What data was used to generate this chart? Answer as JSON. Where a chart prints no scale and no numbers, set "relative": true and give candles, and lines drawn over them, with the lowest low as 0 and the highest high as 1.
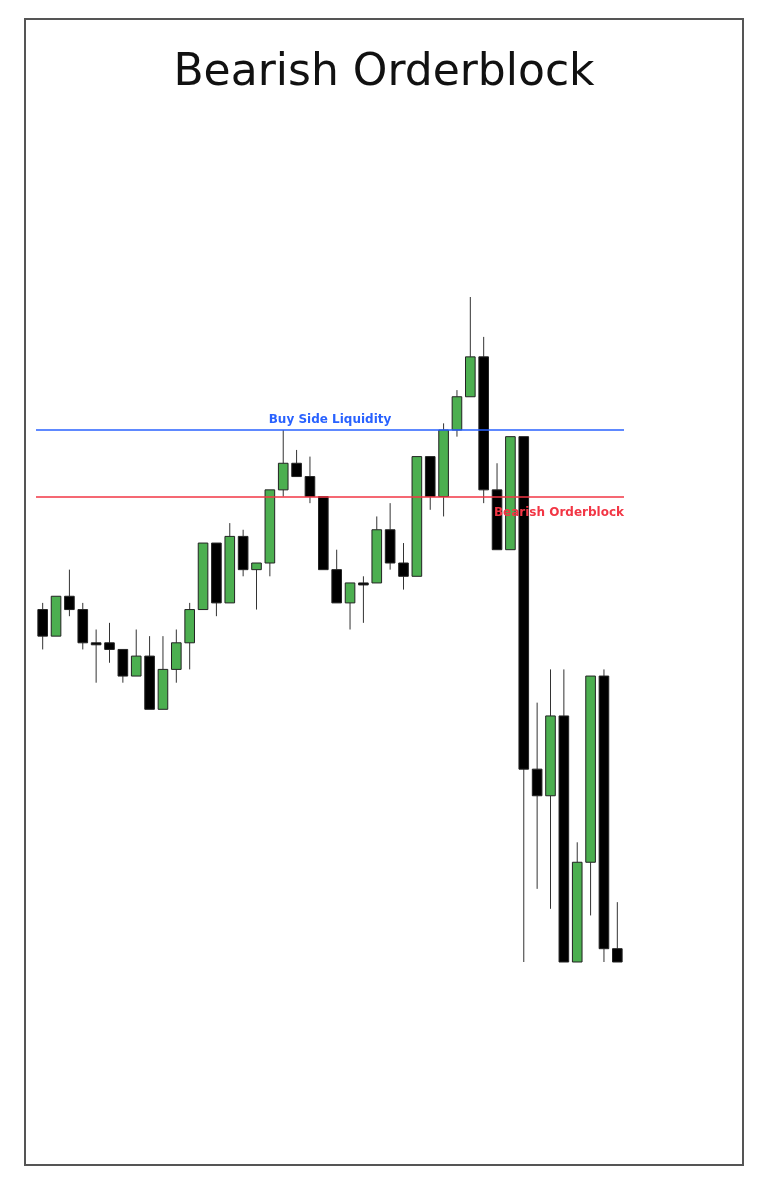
{
  "chart_data": {
    "type": "candlestick",
    "title": "Bearish Orderblock",
    "relative": true,
    "tick_labels": false,
    "categories": [
      null,
      null,
      null,
      null,
      null,
      null,
      null,
      null,
      null,
      null,
      null,
      null,
      null,
      null,
      null,
      null,
      null,
      null,
      null,
      null,
      null,
      null,
      null,
      null,
      null,
      null,
      null,
      null,
      null,
      null,
      null,
      null,
      null,
      null,
      null,
      null,
      null,
      null,
      null,
      null,
      null,
      null,
      null,
      null
    ],
    "series": [
      {
        "colors": [
          "#000000",
          "#4caf50",
          "#000000",
          "#000000",
          "#000000",
          "#000000",
          "#000000",
          "#4caf50",
          "#000000",
          "#4caf50",
          "#4caf50",
          "#4caf50",
          "#4caf50",
          "#000000",
          "#4caf50",
          "#000000",
          "#4caf50",
          "#4caf50",
          "#4caf50",
          "#000000",
          "#000000",
          "#000000",
          "#000000",
          "#4caf50",
          "#000000",
          "#4caf50",
          "#000000",
          "#000000",
          "#4caf50",
          "#000000",
          "#4caf50",
          "#4caf50",
          "#4caf50",
          "#000000",
          "#000000",
          "#4caf50",
          "#000000",
          "#000000",
          "#4caf50",
          "#000000",
          "#4caf50",
          "#4caf50",
          "#000000",
          "#000000"
        ],
        "ohlc": [
          [
            0.53,
            0.54,
            0.47,
            0.49
          ],
          [
            0.49,
            0.55,
            0.49,
            0.55
          ],
          [
            0.55,
            0.59,
            0.52,
            0.53
          ],
          [
            0.53,
            0.54,
            0.47,
            0.48
          ],
          [
            0.48,
            0.5,
            0.42,
            0.48
          ],
          [
            0.48,
            0.51,
            0.45,
            0.47
          ],
          [
            0.47,
            0.47,
            0.42,
            0.43
          ],
          [
            0.43,
            0.5,
            0.43,
            0.46
          ],
          [
            0.46,
            0.49,
            0.38,
            0.38
          ],
          [
            0.38,
            0.49,
            0.38,
            0.44
          ],
          [
            0.44,
            0.5,
            0.42,
            0.48
          ],
          [
            0.48,
            0.54,
            0.44,
            0.53
          ],
          [
            0.53,
            0.63,
            0.53,
            0.63
          ],
          [
            0.63,
            0.63,
            0.52,
            0.54
          ],
          [
            0.54,
            0.66,
            0.54,
            0.64
          ],
          [
            0.64,
            0.65,
            0.58,
            0.59
          ],
          [
            0.59,
            0.6,
            0.53,
            0.6
          ],
          [
            0.6,
            0.71,
            0.58,
            0.71
          ],
          [
            0.71,
            0.8,
            0.7,
            0.75
          ],
          [
            0.75,
            0.77,
            0.73,
            0.73
          ],
          [
            0.73,
            0.76,
            0.69,
            0.7
          ],
          [
            0.7,
            0.7,
            0.59,
            0.59
          ],
          [
            0.59,
            0.62,
            0.54,
            0.54
          ],
          [
            0.54,
            0.57,
            0.5,
            0.57
          ],
          [
            0.57,
            0.58,
            0.51,
            0.57
          ],
          [
            0.57,
            0.67,
            0.57,
            0.65
          ],
          [
            0.65,
            0.69,
            0.59,
            0.6
          ],
          [
            0.6,
            0.63,
            0.56,
            0.58
          ],
          [
            0.58,
            0.76,
            0.58,
            0.76
          ],
          [
            0.76,
            0.76,
            0.68,
            0.7
          ],
          [
            0.7,
            0.81,
            0.67,
            0.8
          ],
          [
            0.8,
            0.86,
            0.79,
            0.85
          ],
          [
            0.85,
            1,
            0.85,
            0.91
          ],
          [
            0.91,
            0.94,
            0.69,
            0.71
          ],
          [
            0.71,
            0.75,
            0.62,
            0.62
          ],
          [
            0.62,
            0.79,
            0.62,
            0.79
          ],
          [
            0.79,
            0.79,
            0,
            0.29
          ],
          [
            0.29,
            0.39,
            0.11,
            0.25
          ],
          [
            0.25,
            0.44,
            0.08,
            0.37
          ],
          [
            0.37,
            0.44,
            0,
            0
          ],
          [
            0,
            0.18,
            0,
            0.15
          ],
          [
            0.15,
            0.43,
            0.07,
            0.43
          ],
          [
            0.43,
            0.44,
            0,
            0.02
          ],
          [
            0.02,
            0.09,
            0,
            0
          ]
        ]
      }
    ],
    "ref_lines": [
      {
        "axis": "y",
        "value": 0.8,
        "label": "Buy Side Liquidity",
        "color": "#2962ff"
      },
      {
        "axis": "y",
        "value": 0.7,
        "label": "Bearish Orderblock",
        "color": "#f23645"
      }
    ]
  }
}
